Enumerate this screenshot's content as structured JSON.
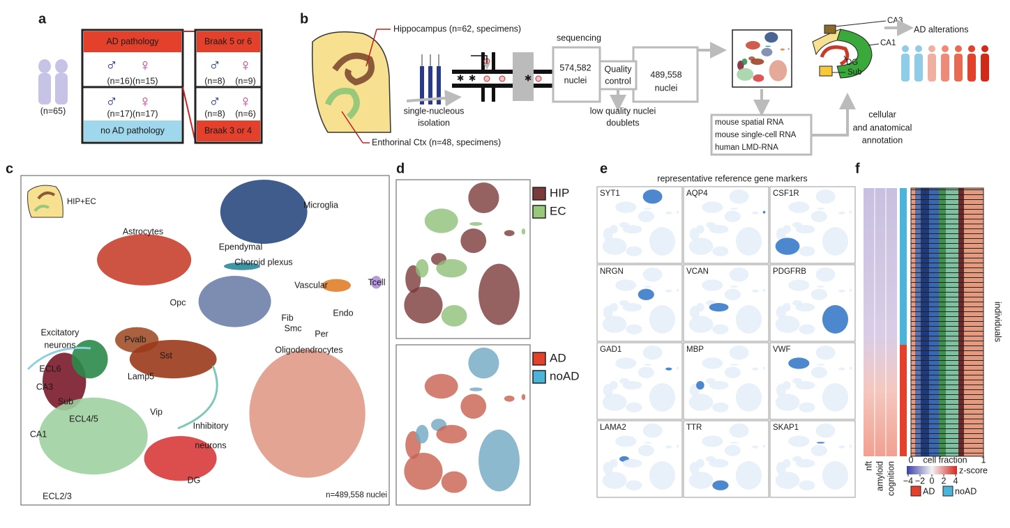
{
  "panel_a": {
    "label": "a",
    "total": "(n=65)",
    "ad_pathology": "AD pathology",
    "ad_counts": "(n=16)(n=15)",
    "noad_counts": "(n=17)(n=17)",
    "no_ad_pathology": "no AD pathology",
    "braak_high": "Braak 5 or 6",
    "braak_high_male": "(n=8)",
    "braak_high_female": "(n=9)",
    "braak_low_male": "(n=8)",
    "braak_low_female": "(n=6)",
    "braak_low": "Braak 3 or 4",
    "male_symbol": "♂",
    "female_symbol": "♀"
  },
  "panel_b": {
    "label": "b",
    "hippocampus": "Hippocampus (n=62, specimens)",
    "ec": "Enthorinal Ctx (n=48, specimens)",
    "isolation_1": "single-nucleous",
    "isolation_2": "isolation",
    "sequencing": "sequencing",
    "raw_count": "574,582",
    "nuclei": "nuclei",
    "qc_1": "Quality",
    "qc_2": "control",
    "final_count": "489,558",
    "removed_1": "low quality nuclei",
    "removed_2": "doublets",
    "references": [
      "mouse spatial RNA",
      "mouse single-cell RNA",
      "human LMD-RNA"
    ],
    "annotation_1": "cellular",
    "annotation_2": "and anatomical",
    "annotation_3": "annotation",
    "ca3": "CA3",
    "ca1": "CA1",
    "dg": "DG",
    "sub": "Sub",
    "ad_alterations": "AD alterations"
  },
  "panel_c": {
    "label": "c",
    "inset": "HIP+EC",
    "total": "n=489,558 nuclei",
    "clusters": [
      "Microglia",
      "Astrocytes",
      "Ependymal",
      "Choroid plexus",
      "Tcell",
      "Vascular",
      "Fib",
      "Smc",
      "Per",
      "Endo",
      "Opc",
      "Excitatory",
      "neurons",
      "Pvalb",
      "Sst",
      "Lamp5",
      "Vip",
      "Inhibitory",
      "neurons",
      "ECL6",
      "CA3",
      "Sub",
      "CA1",
      "ECL4/5",
      "ECL2/3",
      "DG",
      "Oligodendrocytes"
    ]
  },
  "panel_d": {
    "label": "d",
    "legend_region": [
      {
        "name": "HIP",
        "color": "#7a3a3a"
      },
      {
        "name": "EC",
        "color": "#98c87a"
      }
    ],
    "legend_disease": [
      {
        "name": "AD",
        "color": "#e3412b"
      },
      {
        "name": "noAD",
        "color": "#4cb4d8"
      }
    ]
  },
  "panel_e": {
    "label": "e",
    "title": "representative reference gene markers",
    "genes": [
      "SYT1",
      "AQP4",
      "CSF1R",
      "NRGN",
      "VCAN",
      "PDGFRB",
      "GAD1",
      "MBP",
      "VWF",
      "LAMA2",
      "TTR",
      "SKAP1"
    ]
  },
  "panel_f": {
    "label": "f",
    "individuals": "individuals",
    "traits": [
      "nft",
      "amyloid",
      "cognition"
    ],
    "fraction_label": "cell fraction",
    "fraction_ticks": [
      0,
      1
    ],
    "zscore_label": "z-score",
    "zscore_ticks": [
      {
        "value": -4,
        "label": "−4"
      },
      {
        "value": -2,
        "label": "−2"
      },
      0,
      2,
      4
    ],
    "legend": [
      {
        "name": "AD",
        "color": "#e3412b"
      },
      {
        "name": "noAD",
        "color": "#4cb4d8"
      }
    ]
  }
}
